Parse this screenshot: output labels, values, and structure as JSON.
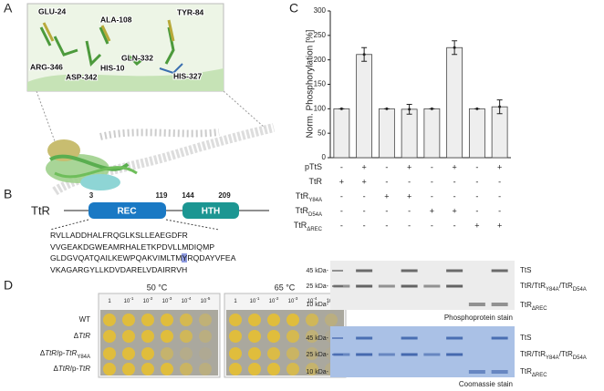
{
  "panels": {
    "a": "A",
    "b": "B",
    "c": "C",
    "d": "D"
  },
  "structure": {
    "residues": [
      "GLU-24",
      "ALA-108",
      "TYR-84",
      "GLN-332",
      "ARG-346",
      "ASP-342",
      "HIS-10",
      "HIS-327"
    ]
  },
  "domains": {
    "protein": "TtR",
    "rec": {
      "name": "REC",
      "start": "3",
      "end": "119"
    },
    "hth": {
      "name": "HTH",
      "start": "144",
      "end": "209"
    }
  },
  "sequence": {
    "line1": "RVLLADDHALFRQGLKSLLEAEGDFR",
    "line2": "VVGEAKDGWEAMRHALETKPDVLLMDIQMP",
    "line3_before": "GLDGVQATQAILKEWPQAKVIMLTM",
    "line3_highlight": "Y",
    "line3_after": "RQDAYVFEA",
    "line4": "VKAGARGYLLKDVDARELVDAIRRVH"
  },
  "chart_data": {
    "type": "bar",
    "y_label": "Norm. Phosphorylation [%]",
    "categories": [
      null,
      null,
      null,
      null,
      null,
      null,
      null,
      null
    ],
    "values": [
      100,
      211,
      100,
      99,
      100,
      225,
      100,
      104
    ],
    "errors": [
      0,
      14,
      0,
      10,
      0,
      14,
      0,
      14
    ],
    "color": "#eeeeee",
    "ylim": [
      0,
      300
    ],
    "yticks": [
      0,
      50,
      100,
      150,
      200,
      250,
      300
    ]
  },
  "conditions": [
    {
      "name": "pTtS",
      "signs": [
        "-",
        "+",
        "-",
        "+",
        "-",
        "+",
        "-",
        "+"
      ]
    },
    {
      "name": "TtR",
      "signs": [
        "+",
        "+",
        "-",
        "-",
        "-",
        "-",
        "-",
        "-"
      ]
    },
    {
      "name": "TtR",
      "subscript": "Y84A",
      "signs": [
        "-",
        "-",
        "+",
        "+",
        "-",
        "-",
        "-",
        "-"
      ]
    },
    {
      "name": "TtR",
      "subscript": "D54A",
      "signs": [
        "-",
        "-",
        "-",
        "-",
        "+",
        "+",
        "-",
        "-"
      ]
    },
    {
      "name": "TtR",
      "subscript": "ΔREC",
      "signs": [
        "-",
        "-",
        "-",
        "-",
        "-",
        "-",
        "+",
        "+"
      ]
    }
  ],
  "gels": {
    "markers": [
      "45 kDa-",
      "25 kDa-",
      "10 kDa-"
    ],
    "labels": {
      "tts": "TtS",
      "ttr": "TtR/TtR",
      "y84a": "Y84A",
      "slash": "/TtR",
      "d54a": "D54A",
      "rec": "TtR",
      "rec_sub": "ΔREC"
    },
    "stains": [
      "Phosphoprotein stain",
      "Coomassie stain"
    ]
  },
  "growth": {
    "temps": [
      "50 °C",
      "65 °C"
    ],
    "dilutions": [
      {
        "base": "1"
      },
      {
        "base": "10",
        "exp": "-1"
      },
      {
        "base": "10",
        "exp": "-2"
      },
      {
        "base": "10",
        "exp": "-3"
      },
      {
        "base": "10",
        "exp": "-4"
      },
      {
        "base": "10",
        "exp": "-5"
      }
    ],
    "strains": {
      "wt": "WT",
      "delta": "Δ",
      "ttr": "TtR",
      "plasmid": "/p-",
      "y84a": "Y84A"
    }
  }
}
